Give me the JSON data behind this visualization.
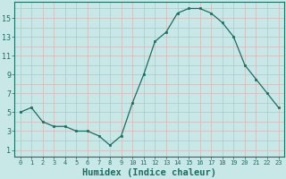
{
  "x": [
    0,
    1,
    2,
    3,
    4,
    5,
    6,
    7,
    8,
    9,
    10,
    11,
    12,
    13,
    14,
    15,
    16,
    17,
    18,
    19,
    20,
    21,
    22,
    23
  ],
  "y": [
    5.0,
    5.5,
    4.0,
    3.5,
    3.5,
    3.0,
    3.0,
    2.5,
    1.5,
    2.5,
    6.0,
    9.0,
    12.5,
    13.5,
    15.5,
    16.0,
    16.0,
    15.5,
    14.5,
    13.0,
    10.0,
    8.5,
    7.0,
    5.5
  ],
  "line_color": "#1a6e62",
  "marker": "s",
  "marker_size": 2.0,
  "bg_color": "#c8e8e8",
  "grid_color_major": "#b0c8c8",
  "grid_color_minor": "#d4b8b8",
  "tick_label_color": "#1a6e62",
  "xlabel": "Humidex (Indice chaleur)",
  "xlabel_color": "#1a6e62",
  "xlabel_fontsize": 7.5,
  "ylabel_ticks": [
    1,
    3,
    5,
    7,
    9,
    11,
    13,
    15
  ],
  "ylim": [
    0.3,
    16.7
  ],
  "xlim": [
    -0.5,
    23.5
  ],
  "figsize": [
    3.2,
    2.0
  ],
  "dpi": 100
}
